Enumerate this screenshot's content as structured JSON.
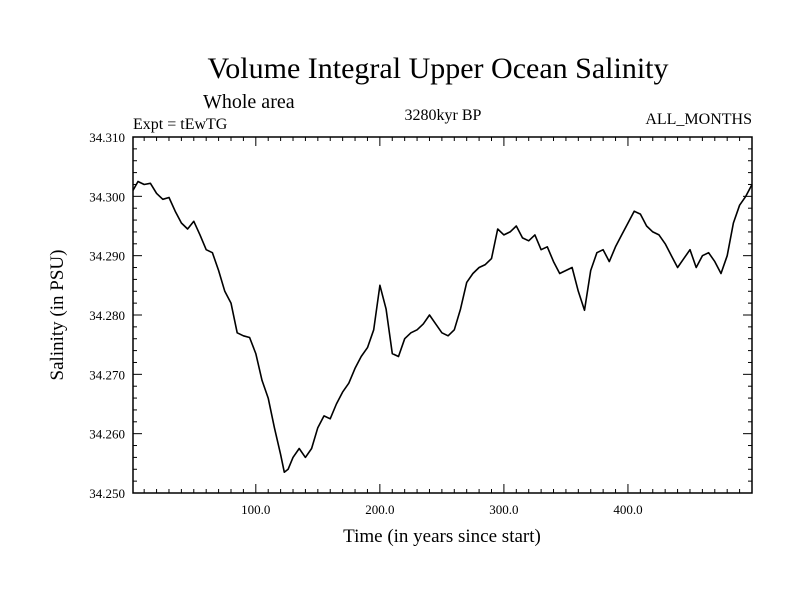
{
  "chart_data": {
    "type": "line",
    "title": "Volume Integral Upper Ocean Salinity",
    "subtitle": "Whole area",
    "experiment": "Expt = tEwTG",
    "period": "3280kyr BP",
    "months": "ALL_MONTHS",
    "xlabel": "Time (in years since start)",
    "ylabel": "Salinity (in PSU)",
    "xlim": [
      1,
      500
    ],
    "ylim": [
      34.25,
      34.31
    ],
    "xticks": [
      100,
      200,
      300,
      400
    ],
    "xtick_labels": [
      "100.0",
      "200.0",
      "300.0",
      "400.0"
    ],
    "yticks": [
      34.25,
      34.26,
      34.27,
      34.28,
      34.29,
      34.3,
      34.31
    ],
    "ytick_labels": [
      "34.250",
      "34.260",
      "34.270",
      "34.280",
      "34.290",
      "34.300",
      "34.310"
    ],
    "series": [
      {
        "name": "salinity",
        "x": [
          1,
          5,
          10,
          15,
          20,
          25,
          30,
          35,
          40,
          45,
          50,
          55,
          60,
          65,
          70,
          75,
          80,
          85,
          90,
          95,
          100,
          105,
          110,
          115,
          120,
          123,
          126,
          130,
          135,
          140,
          145,
          150,
          155,
          160,
          165,
          170,
          175,
          180,
          185,
          190,
          195,
          200,
          205,
          210,
          215,
          220,
          225,
          230,
          235,
          240,
          245,
          250,
          255,
          260,
          265,
          270,
          275,
          280,
          285,
          290,
          295,
          300,
          305,
          310,
          315,
          320,
          325,
          330,
          335,
          340,
          345,
          350,
          355,
          360,
          365,
          370,
          375,
          380,
          385,
          390,
          395,
          400,
          405,
          410,
          415,
          420,
          425,
          430,
          435,
          440,
          445,
          450,
          455,
          460,
          465,
          470,
          475,
          480,
          485,
          490,
          495,
          500
        ],
        "values": [
          34.301,
          34.3025,
          34.302,
          34.3022,
          34.3005,
          34.2995,
          34.2998,
          34.2975,
          34.2955,
          34.2945,
          34.2958,
          34.2935,
          34.291,
          34.2905,
          34.2875,
          34.284,
          34.282,
          34.277,
          34.2765,
          34.2762,
          34.2735,
          34.269,
          34.266,
          34.261,
          34.2565,
          34.2535,
          34.254,
          34.256,
          34.2575,
          34.256,
          34.2575,
          34.261,
          34.263,
          34.2625,
          34.265,
          34.267,
          34.2685,
          34.271,
          34.273,
          34.2745,
          34.2775,
          34.285,
          34.281,
          34.2735,
          34.273,
          34.276,
          34.277,
          34.2775,
          34.2785,
          34.28,
          34.2785,
          34.277,
          34.2765,
          34.2775,
          34.281,
          34.2855,
          34.287,
          34.288,
          34.2885,
          34.2895,
          34.2945,
          34.2935,
          34.294,
          34.295,
          34.293,
          34.2925,
          34.2935,
          34.291,
          34.2915,
          34.289,
          34.287,
          34.2875,
          34.288,
          34.284,
          34.2808,
          34.2875,
          34.2905,
          34.291,
          34.289,
          34.2915,
          34.2935,
          34.2955,
          34.2975,
          34.297,
          34.295,
          34.294,
          34.2935,
          34.292,
          34.29,
          34.288,
          34.2895,
          34.291,
          34.288,
          34.29,
          34.2905,
          34.289,
          34.287,
          34.29,
          34.2955,
          34.2985,
          34.3,
          34.302
        ]
      }
    ]
  }
}
